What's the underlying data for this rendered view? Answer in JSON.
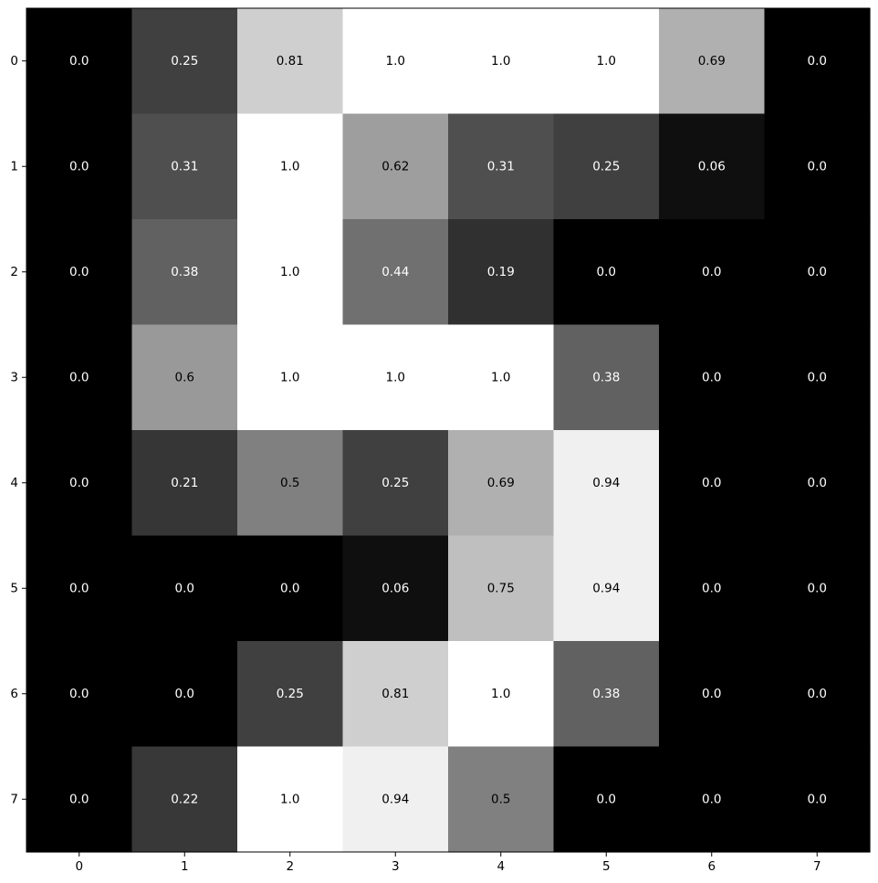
{
  "chart_data": {
    "type": "heatmap",
    "title": "",
    "xlabel": "",
    "ylabel": "",
    "colormap": "gray",
    "value_range": [
      0,
      1
    ],
    "x_ticks": [
      "0",
      "1",
      "2",
      "3",
      "4",
      "5",
      "6",
      "7"
    ],
    "y_ticks": [
      "0",
      "1",
      "2",
      "3",
      "4",
      "5",
      "6",
      "7"
    ],
    "grid": false,
    "legend": "none",
    "values": [
      [
        0.0,
        0.25,
        0.81,
        1.0,
        1.0,
        1.0,
        0.69,
        0.0
      ],
      [
        0.0,
        0.31,
        1.0,
        0.62,
        0.31,
        0.25,
        0.06,
        0.0
      ],
      [
        0.0,
        0.38,
        1.0,
        0.44,
        0.19,
        0.0,
        0.0,
        0.0
      ],
      [
        0.0,
        0.6,
        1.0,
        1.0,
        1.0,
        0.38,
        0.0,
        0.0
      ],
      [
        0.0,
        0.21,
        0.5,
        0.25,
        0.69,
        0.94,
        0.0,
        0.0
      ],
      [
        0.0,
        0.0,
        0.0,
        0.06,
        0.75,
        0.94,
        0.0,
        0.0
      ],
      [
        0.0,
        0.0,
        0.25,
        0.81,
        1.0,
        0.38,
        0.0,
        0.0
      ],
      [
        0.0,
        0.22,
        1.0,
        0.94,
        0.5,
        0.0,
        0.0,
        0.0
      ]
    ],
    "labels": [
      [
        "0.0",
        "0.25",
        "0.81",
        "1.0",
        "1.0",
        "1.0",
        "0.69",
        "0.0"
      ],
      [
        "0.0",
        "0.31",
        "1.0",
        "0.62",
        "0.31",
        "0.25",
        "0.06",
        "0.0"
      ],
      [
        "0.0",
        "0.38",
        "1.0",
        "0.44",
        "0.19",
        "0.0",
        "0.0",
        "0.0"
      ],
      [
        "0.0",
        "0.6",
        "1.0",
        "1.0",
        "1.0",
        "0.38",
        "0.0",
        "0.0"
      ],
      [
        "0.0",
        "0.21",
        "0.5",
        "0.25",
        "0.69",
        "0.94",
        "0.0",
        "0.0"
      ],
      [
        "0.0",
        "0.0",
        "0.0",
        "0.06",
        "0.75",
        "0.94",
        "0.0",
        "0.0"
      ],
      [
        "0.0",
        "0.0",
        "0.25",
        "0.81",
        "1.0",
        "0.38",
        "0.0",
        "0.0"
      ],
      [
        "0.0",
        "0.22",
        "1.0",
        "0.94",
        "0.5",
        "0.0",
        "0.0",
        "0.0"
      ]
    ],
    "label_colors": {
      "on_dark": "#ffffff",
      "on_light": "#000000"
    }
  }
}
